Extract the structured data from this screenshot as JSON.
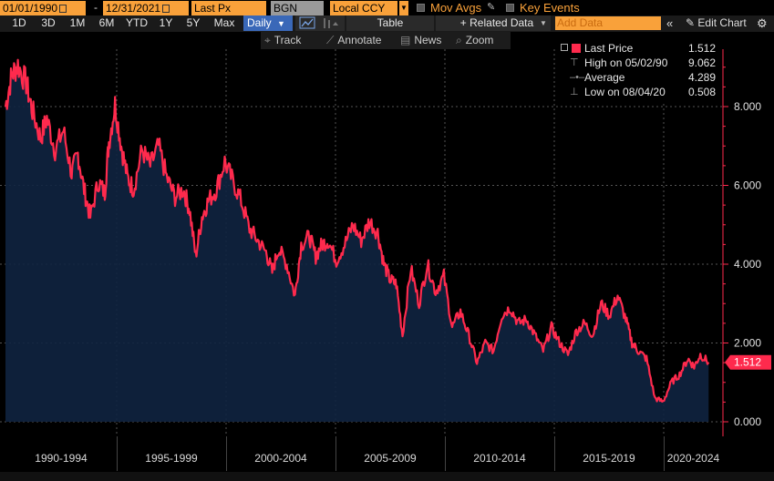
{
  "toolbar": {
    "start_date": "01/01/1990",
    "end_date": "12/31/2021",
    "date_sep": "-",
    "field": "Last Px",
    "security": "BGN",
    "currency": "Local CCY",
    "mov_avgs": "Mov Avgs",
    "key_events": "Key Events"
  },
  "periods": [
    "1D",
    "3D",
    "1M",
    "6M",
    "YTD",
    "1Y",
    "5Y",
    "Max"
  ],
  "frequency": "Daily",
  "table_label": "Table",
  "related_data": "+ Related Data",
  "add_data_placeholder": "Add Data",
  "edit_chart": "Edit Chart",
  "tools": {
    "track": "Track",
    "annotate": "Annotate",
    "news": "News",
    "zoom": "Zoom"
  },
  "legend": {
    "last_price_label": "Last Price",
    "last_price_value": "1.512",
    "high_label": "High on 05/02/90",
    "high_value": "9.062",
    "average_label": "Average",
    "average_value": "4.289",
    "low_label": "Low on 08/04/20",
    "low_value": "0.508"
  },
  "colors": {
    "line": "#ff2a4d",
    "fill": "#0f2340",
    "accent": "#f9a13a",
    "selected": "#3a68b8"
  },
  "chart_data": {
    "type": "area",
    "title": "",
    "xlabel": "",
    "ylabel": "",
    "ylim": [
      0,
      9.6
    ],
    "yticks": [
      "8.000",
      "6.000",
      "4.000",
      "2.000",
      "0.000"
    ],
    "ytick_values": [
      8,
      6,
      4,
      2,
      0
    ],
    "x_range": [
      1990.0,
      2024.0
    ],
    "last_value_label": "1.512",
    "x_period_labels": [
      "1990-1994",
      "1995-1999",
      "2000-2004",
      "2005-2009",
      "2010-2014",
      "2015-2019",
      "2020-2024"
    ],
    "x_period_starts": [
      1990,
      1995,
      2000,
      2005,
      2010,
      2015,
      2020,
      2025
    ],
    "series": [
      {
        "name": "Last Price",
        "x": [
          1990.0,
          1990.3,
          1990.6,
          1991.0,
          1991.3,
          1991.7,
          1992.0,
          1992.4,
          1992.8,
          1993.2,
          1993.5,
          1993.8,
          1994.1,
          1994.5,
          1994.8,
          1995.0,
          1995.3,
          1995.6,
          1995.9,
          1996.2,
          1996.6,
          1997.0,
          1997.4,
          1997.8,
          1998.2,
          1998.6,
          1998.9,
          1999.2,
          1999.5,
          1999.8,
          2000.2,
          2000.6,
          2001.0,
          2001.4,
          2001.8,
          2002.2,
          2002.6,
          2002.9,
          2003.2,
          2003.6,
          2004.0,
          2004.3,
          2004.7,
          2005.0,
          2005.3,
          2005.6,
          2006.0,
          2006.4,
          2006.8,
          2007.2,
          2007.6,
          2008.0,
          2008.3,
          2008.6,
          2008.9,
          2009.2,
          2009.6,
          2010.0,
          2010.4,
          2010.8,
          2011.2,
          2011.6,
          2012.0,
          2012.4,
          2012.8,
          2013.2,
          2013.6,
          2014.0,
          2014.4,
          2014.8,
          2015.2,
          2015.6,
          2016.0,
          2016.4,
          2016.8,
          2017.2,
          2017.6,
          2018.0,
          2018.4,
          2018.8,
          2019.2,
          2019.6,
          2020.0,
          2020.3,
          2020.6,
          2021.0,
          2021.4,
          2021.8,
          2022.2,
          2022.6,
          2023.0,
          2023.3,
          2023.6,
          2024.0
        ],
        "values": [
          8.0,
          8.8,
          9.06,
          8.6,
          7.9,
          7.2,
          7.7,
          6.9,
          7.4,
          6.3,
          6.8,
          5.9,
          5.2,
          6.1,
          5.8,
          7.1,
          8.05,
          7.0,
          6.2,
          5.9,
          6.9,
          6.5,
          7.0,
          6.2,
          5.7,
          5.9,
          5.4,
          4.2,
          5.2,
          5.6,
          5.9,
          6.6,
          6.1,
          5.6,
          4.9,
          4.6,
          4.3,
          3.8,
          4.4,
          4.0,
          3.2,
          4.5,
          4.7,
          4.2,
          4.5,
          4.6,
          4.1,
          4.5,
          5.0,
          4.6,
          5.1,
          4.8,
          4.0,
          3.6,
          3.5,
          2.2,
          3.9,
          3.0,
          4.0,
          3.3,
          3.7,
          2.4,
          2.8,
          2.2,
          1.5,
          2.0,
          1.8,
          2.7,
          2.9,
          2.5,
          2.6,
          2.2,
          1.8,
          2.4,
          2.0,
          1.7,
          2.3,
          2.5,
          2.2,
          3.0,
          2.7,
          3.2,
          2.6,
          2.0,
          1.8,
          1.6,
          0.6,
          0.51,
          1.0,
          1.2,
          1.6,
          1.4,
          1.7,
          1.51
        ]
      }
    ]
  }
}
